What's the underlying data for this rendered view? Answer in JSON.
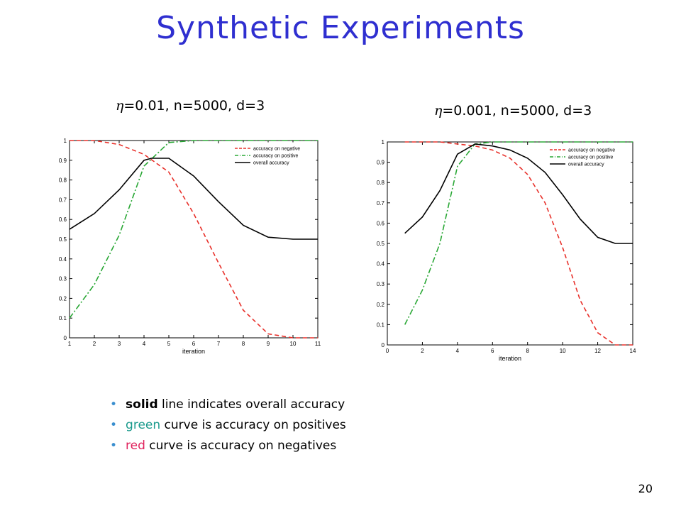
{
  "slide": {
    "title": "Synthetic Experiments",
    "page_number": "20"
  },
  "bullets": [
    {
      "keyword": "solid",
      "rest": " line indicates overall accuracy",
      "keyword_color": "#000000"
    },
    {
      "keyword": "green",
      "rest": " curve is accuracy on positives",
      "keyword_color": "#1a9a8c"
    },
    {
      "keyword": "red",
      "rest": " curve is accuracy on negatives",
      "keyword_color": "#e0245e"
    }
  ],
  "chart_data": [
    {
      "type": "line",
      "caption_symbol": "η",
      "caption_text": "=0.01, n=5000, d=3",
      "xlabel": "iteration",
      "xlim": [
        1,
        11
      ],
      "ylim": [
        0,
        1
      ],
      "xticks": [
        1,
        2,
        3,
        4,
        5,
        6,
        7,
        8,
        9,
        10,
        11
      ],
      "yticks": [
        0,
        0.1,
        0.2,
        0.3,
        0.4,
        0.5,
        0.6,
        0.7,
        0.8,
        0.9,
        1
      ],
      "legend_position": "top-right",
      "grid": false,
      "series": [
        {
          "name": "accuracy on negative",
          "color": "#e8302a",
          "style": "dashed",
          "x": [
            1,
            2,
            3,
            4,
            5,
            6,
            7,
            8,
            9,
            10,
            11
          ],
          "y": [
            1.0,
            1.0,
            0.98,
            0.93,
            0.84,
            0.63,
            0.38,
            0.14,
            0.02,
            0.0,
            0.0
          ]
        },
        {
          "name": "accuracy on positive",
          "color": "#2aa836",
          "style": "dashdot",
          "x": [
            1,
            2,
            3,
            4,
            5,
            6,
            7,
            8,
            9,
            10,
            11
          ],
          "y": [
            0.1,
            0.27,
            0.52,
            0.87,
            0.99,
            1.0,
            1.0,
            1.0,
            1.0,
            1.0,
            1.0
          ]
        },
        {
          "name": "overall accuracy",
          "color": "#000000",
          "style": "solid",
          "x": [
            1,
            2,
            3,
            4,
            4.3,
            5,
            6,
            7,
            8,
            9,
            10,
            11
          ],
          "y": [
            0.55,
            0.63,
            0.75,
            0.9,
            0.91,
            0.91,
            0.82,
            0.69,
            0.57,
            0.51,
            0.5,
            0.5
          ]
        }
      ]
    },
    {
      "type": "line",
      "caption_symbol": "η",
      "caption_text": "=0.001, n=5000, d=3",
      "xlabel": "iteration",
      "xlim": [
        0,
        14
      ],
      "ylim": [
        0,
        1
      ],
      "xticks": [
        0,
        2,
        4,
        6,
        8,
        10,
        12,
        14
      ],
      "yticks": [
        0,
        0.1,
        0.2,
        0.3,
        0.4,
        0.5,
        0.6,
        0.7,
        0.8,
        0.9,
        1
      ],
      "legend_position": "top-right",
      "grid": false,
      "series": [
        {
          "name": "accuracy on negative",
          "color": "#e8302a",
          "style": "dashed",
          "x": [
            1,
            2,
            3,
            4,
            5,
            6,
            7,
            8,
            9,
            10,
            11,
            12,
            13,
            14
          ],
          "y": [
            1.0,
            1.0,
            1.0,
            0.99,
            0.98,
            0.96,
            0.92,
            0.84,
            0.7,
            0.48,
            0.22,
            0.06,
            0.0,
            0.0
          ]
        },
        {
          "name": "accuracy on positive",
          "color": "#2aa836",
          "style": "dashdot",
          "x": [
            1,
            2,
            3,
            4,
            5,
            6,
            7,
            8,
            9,
            10,
            11,
            12,
            13,
            14
          ],
          "y": [
            0.1,
            0.27,
            0.5,
            0.88,
            0.99,
            1.0,
            1.0,
            1.0,
            1.0,
            1.0,
            1.0,
            1.0,
            1.0,
            1.0
          ]
        },
        {
          "name": "overall accuracy",
          "color": "#000000",
          "style": "solid",
          "x": [
            1,
            2,
            3,
            4,
            5,
            6,
            7,
            8,
            9,
            10,
            11,
            12,
            13,
            14
          ],
          "y": [
            0.55,
            0.63,
            0.76,
            0.94,
            0.99,
            0.98,
            0.96,
            0.92,
            0.85,
            0.74,
            0.62,
            0.53,
            0.5,
            0.5
          ]
        }
      ]
    }
  ]
}
